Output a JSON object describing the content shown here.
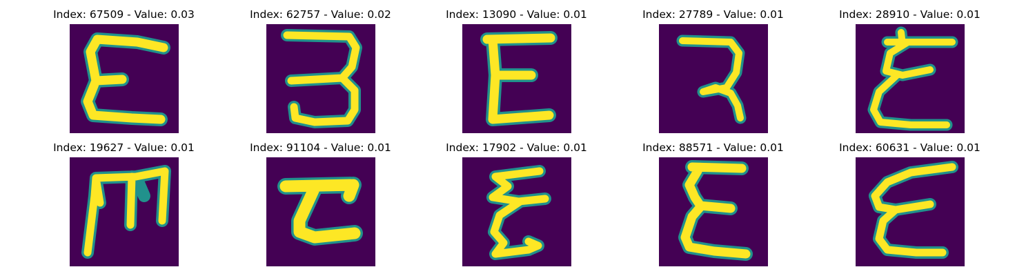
{
  "colors": {
    "background": "#440154",
    "stroke_core": "#fde725",
    "stroke_edge": "#21918c",
    "stroke_mid": "#5ec962"
  },
  "panels": [
    {
      "title": "Index: 67509 - Value: 0.03",
      "glyph": "epsilon-open"
    },
    {
      "title": "Index: 62757 - Value: 0.02",
      "glyph": "three-hooked"
    },
    {
      "title": "Index: 13090 - Value: 0.01",
      "glyph": "epsilon-block"
    },
    {
      "title": "Index: 27789 - Value: 0.01",
      "glyph": "seven-hook"
    },
    {
      "title": "Index: 28910 - Value: 0.01",
      "glyph": "epsilon-curly"
    },
    {
      "title": "Index: 19627 - Value: 0.01",
      "glyph": "m-shape"
    },
    {
      "title": "Index: 91104 - Value: 0.01",
      "glyph": "c-block"
    },
    {
      "title": "Index: 17902 - Value: 0.01",
      "glyph": "epsilon-zigzag"
    },
    {
      "title": "Index: 88571 - Value: 0.01",
      "glyph": "epsilon-sigma"
    },
    {
      "title": "Index: 60631 - Value: 0.01",
      "glyph": "epsilon-slant"
    }
  ]
}
